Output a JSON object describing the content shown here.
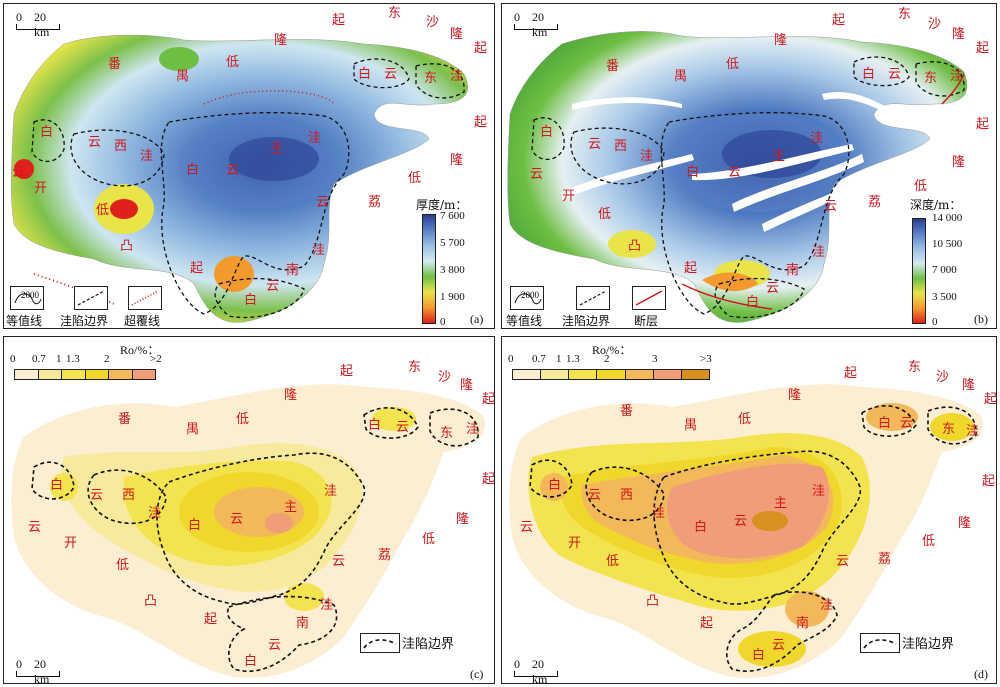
{
  "scale": {
    "zero": "0",
    "dist": "20 km"
  },
  "basin_labels": {
    "fan": "番",
    "yu": "禺",
    "di": "低",
    "long": "隆",
    "qi": "起",
    "dong": "东",
    "sha": "沙",
    "bai": "白",
    "yun": "云",
    "wa": "洼",
    "xi": "西",
    "zhu": "主",
    "kai": "开",
    "tu": "凸",
    "li": "荔",
    "nan": "南"
  },
  "panels": {
    "a": {
      "tag": "(a)",
      "colorbar": {
        "title": "厚度/m：",
        "ticks": [
          "7 600",
          "5 700",
          "3 800",
          "1 900",
          "0"
        ],
        "colors": [
          "#2a3f93",
          "#5a82c6",
          "#9bbfe3",
          "#d6e9f2",
          "#6fbe44",
          "#e8e44a",
          "#f39a2c",
          "#e0201c"
        ]
      },
      "legend": {
        "contour": "等值线",
        "contour_value": "2000",
        "boundary": "洼陷边界",
        "overlap": "超覆线"
      }
    },
    "b": {
      "tag": "(b)",
      "colorbar": {
        "title": "深度/m：",
        "ticks": [
          "14 000",
          "10 500",
          "7 000",
          "3 500",
          "0"
        ],
        "colors": [
          "#2a3f93",
          "#5a82c6",
          "#9bbfe3",
          "#d6e9f2",
          "#6fbe44",
          "#e8e44a",
          "#f39a2c",
          "#e0201c"
        ]
      },
      "legend": {
        "contour": "等值线",
        "contour_value": "2000",
        "boundary": "洼陷边界",
        "fault": "断层"
      }
    },
    "c": {
      "tag": "(c)",
      "ro_title": "Ro/%：",
      "ro_ticks": [
        "0",
        "0.7",
        "1",
        "1.3",
        "2",
        ">2"
      ],
      "ro_colors": [
        "#fbeed2",
        "#f7ea9c",
        "#f3e44f",
        "#f0d72b",
        "#f2b85a",
        "#f09d7a"
      ],
      "legend": {
        "boundary": "洼陷边界"
      }
    },
    "d": {
      "tag": "(d)",
      "ro_title": "Ro/%：",
      "ro_ticks": [
        "0",
        "0.7",
        "1",
        "1.3",
        "2",
        "3",
        ">3"
      ],
      "ro_colors": [
        "#fbeed2",
        "#f7ea9c",
        "#f3e44f",
        "#f0d72b",
        "#f2b85a",
        "#f09d7a",
        "#d8901e"
      ],
      "legend": {
        "boundary": "洼陷边界"
      }
    }
  }
}
